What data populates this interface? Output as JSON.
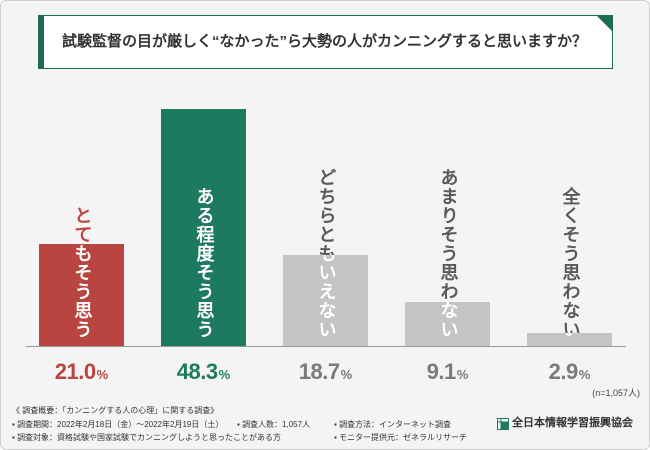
{
  "colors": {
    "brand_green": "#1d6b51",
    "page_background": "#f4f4f4"
  },
  "chart_data": {
    "type": "bar",
    "title": "試験監督の目が厳しく“なかった”ら大勢の人がカンニングすると思いますか？",
    "categories": [
      "とてもそう思う",
      "ある程度そう思う",
      "どちらともいえない",
      "あまりそう思わない",
      "全くそう思わない"
    ],
    "values": [
      21.0,
      48.3,
      18.7,
      9.1,
      2.9
    ],
    "data_labels": [
      "21.0",
      "48.3",
      "18.7",
      "9.1",
      "2.9"
    ],
    "unit": "%",
    "xlabel": "",
    "ylabel": "",
    "ylim": [
      0,
      50
    ],
    "grid": false,
    "bar_colors": [
      "#b8453f",
      "#1e7a5e",
      "#c4c4c4",
      "#c4c4c4",
      "#c4c4c4"
    ],
    "label_colors": [
      "#b8453f",
      "#1e7a5e",
      "#5a5a5a",
      "#5a5a5a",
      "#5a5a5a"
    ],
    "label_color_on_bar": "#ffffff",
    "value_label_colors": [
      "#b8453f",
      "#1e7a5e",
      "#7a7a7a",
      "#7a7a7a",
      "#7a7a7a"
    ]
  },
  "sample_size": "(n=1,057人)",
  "survey": {
    "heading": "《 調査概要：「カンニングする人の心理」に関する調査》",
    "items": [
      "調査期間：2022年2月18日（金）〜2022年2月19日（土）",
      "調査人数：1,057人",
      "調査方法：インターネット調査",
      "調査対象：資格試験や国家試験でカンニングしようと思ったことがある方",
      "モニター提供元：ゼネラルリサーチ"
    ]
  },
  "logo": {
    "name": "全日本情報学習振興協会",
    "icon": "association-logo-icon"
  }
}
